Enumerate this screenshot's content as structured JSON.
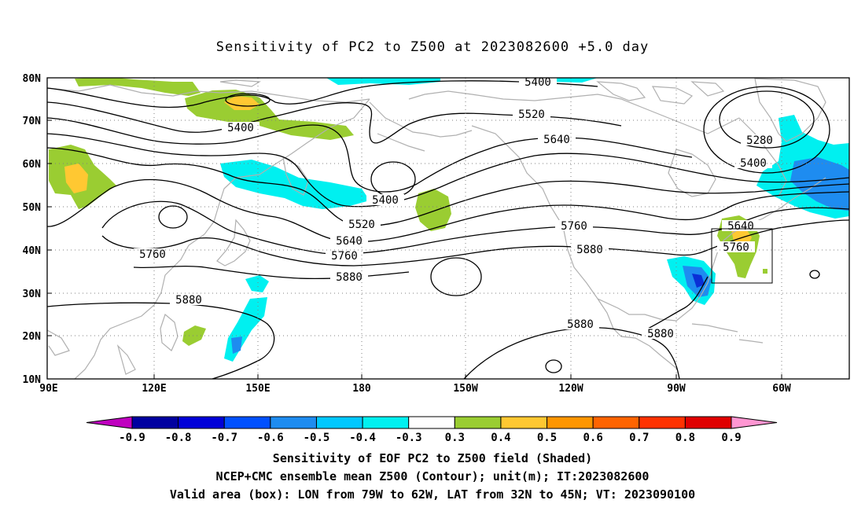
{
  "title": "Sensitivity of PC2 to Z500 at 2023082600 +5.0 day",
  "map": {
    "lat_labels": [
      "80N",
      "70N",
      "60N",
      "50N",
      "40N",
      "30N",
      "20N",
      "10N"
    ],
    "lon_labels": [
      "90E",
      "120E",
      "150E",
      "180",
      "150W",
      "120W",
      "90W",
      "60W"
    ],
    "contour_labels": [
      "5400",
      "5520",
      "5640",
      "5280",
      "5400",
      "5400",
      "5400",
      "5520",
      "5640",
      "5760",
      "5760",
      "5760",
      "5640",
      "5760",
      "5880",
      "5880",
      "5880",
      "5880",
      "5880"
    ],
    "box_label": "Valid area",
    "colors": {
      "strong_negative": "#0a2fd6",
      "negative_mid": "#1e8cf0",
      "negative_light": "#00e8ff",
      "positive_light": "#9acd32",
      "positive_mid": "#ffc832",
      "coastline": "#b0b0b0"
    }
  },
  "colorbar": {
    "ticks": [
      "-0.9",
      "-0.8",
      "-0.7",
      "-0.6",
      "-0.5",
      "-0.4",
      "-0.3",
      "0.3",
      "0.4",
      "0.5",
      "0.6",
      "0.7",
      "0.8",
      "0.9"
    ],
    "colors": [
      "#c000c0",
      "#0000a0",
      "#0000d8",
      "#0050ff",
      "#1e8cf0",
      "#00c8ff",
      "#00f0f0",
      "#ffffff",
      "#9acd32",
      "#ffc832",
      "#ff9600",
      "#ff6400",
      "#ff3200",
      "#e00000",
      "#ff96d2"
    ]
  },
  "footer": {
    "line1": "Sensitivity of EOF PC2 to Z500 field (Shaded)",
    "line2": "NCEP+CMC ensemble mean Z500 (Contour); unit(m); IT:2023082600",
    "line3": "Valid area (box): LON from 79W to 62W, LAT from 32N to 45N; VT: 2023090100"
  }
}
